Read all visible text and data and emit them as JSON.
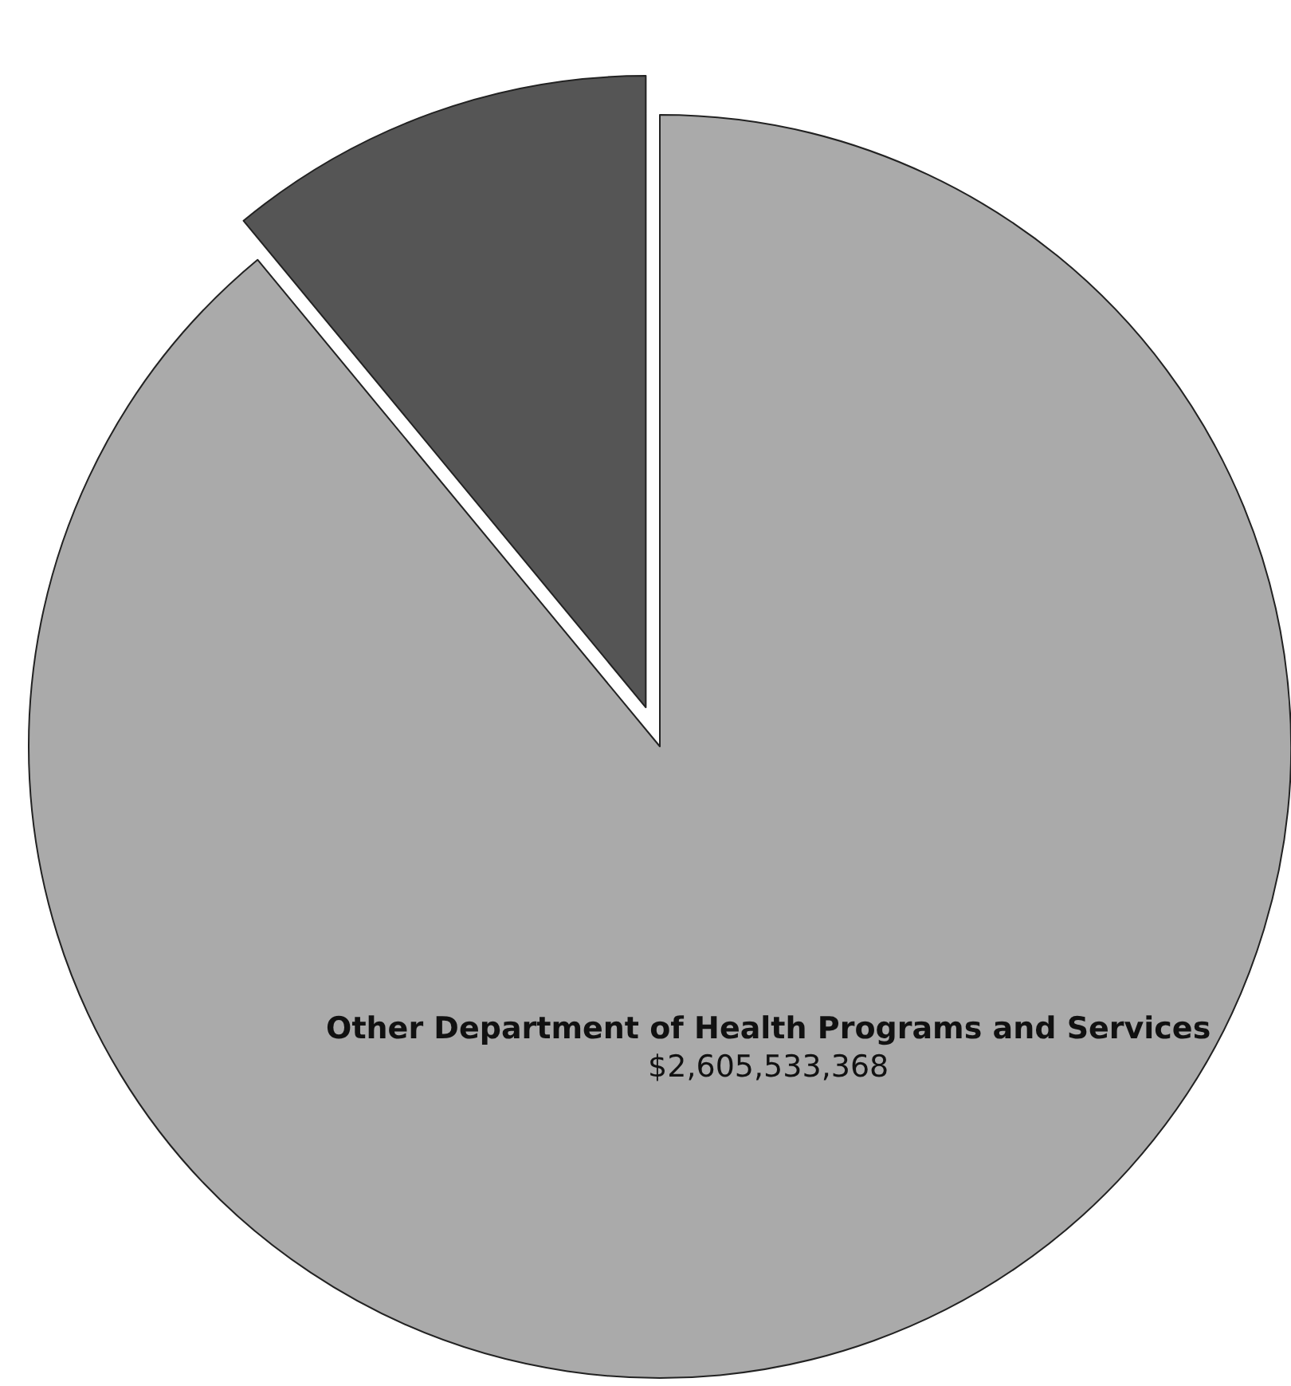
{
  "chart_data": {
    "type": "pie",
    "categories": [
      "Other Department of Health Programs and Services",
      null
    ],
    "values": [
      2605533368,
      322000000
    ],
    "value_labels": [
      "$2,605,533,368",
      null
    ],
    "colors": [
      "#aaaaaa",
      "#555555"
    ]
  }
}
